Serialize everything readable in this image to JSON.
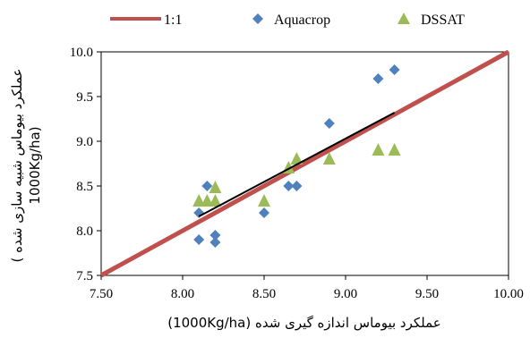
{
  "chart_data": {
    "type": "scatter",
    "xlabel": "عملکرد بیوماس اندازه گیری شده (1000Kg/ha)",
    "ylabel_line1": "عملکرد بیوماس شبیه سازی شده )",
    "ylabel_line2": "1000Kg/ha)",
    "xlim": [
      7.5,
      10.0
    ],
    "ylim": [
      7.5,
      10.0
    ],
    "x_ticks": [
      "7.50",
      "8.00",
      "8.50",
      "9.00",
      "9.50",
      "10.00"
    ],
    "y_ticks": [
      "7.5",
      "8.0",
      "8.5",
      "9.0",
      "9.5",
      "10.0"
    ],
    "grid": false,
    "legend_position": "top",
    "series": [
      {
        "name": "1:1",
        "kind": "line",
        "color": "#c0504d",
        "points": [
          [
            7.5,
            7.5
          ],
          [
            10.0,
            10.0
          ]
        ]
      },
      {
        "name": "Aquacrop",
        "kind": "diamond",
        "color": "#4f81bd",
        "points": [
          [
            8.1,
            8.2
          ],
          [
            8.1,
            7.9
          ],
          [
            8.15,
            8.5
          ],
          [
            8.2,
            7.95
          ],
          [
            8.2,
            7.87
          ],
          [
            8.5,
            8.2
          ],
          [
            8.65,
            8.5
          ],
          [
            8.7,
            8.5
          ],
          [
            8.9,
            9.2
          ],
          [
            9.2,
            9.7
          ],
          [
            9.3,
            9.8
          ]
        ]
      },
      {
        "name": "DSSAT",
        "kind": "triangle",
        "color": "#9bbb59",
        "points": [
          [
            8.1,
            8.33
          ],
          [
            8.15,
            8.33
          ],
          [
            8.2,
            8.33
          ],
          [
            8.2,
            8.48
          ],
          [
            8.5,
            8.33
          ],
          [
            8.65,
            8.7
          ],
          [
            8.7,
            8.8
          ],
          [
            8.9,
            8.8
          ],
          [
            9.2,
            8.9
          ],
          [
            9.3,
            8.9
          ]
        ]
      },
      {
        "kind": "trendline",
        "color": "#000000",
        "points": [
          [
            8.1,
            8.16
          ],
          [
            9.3,
            9.32
          ]
        ]
      }
    ]
  }
}
